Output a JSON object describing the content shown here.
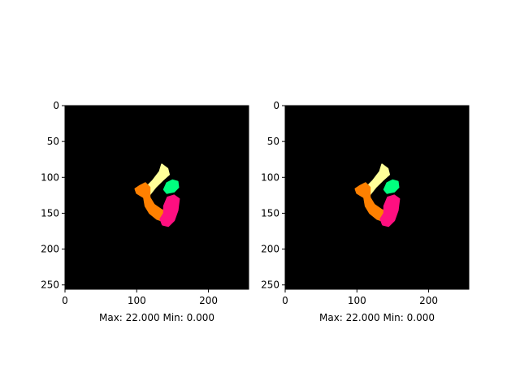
{
  "chart_data": [
    {
      "type": "heatmap",
      "title": "",
      "xlabel": "Max: 22.000 Min: 0.000",
      "ylabel": "",
      "image_size": [
        256,
        256
      ],
      "background_color": "#000000",
      "x_ticks": [
        0,
        100,
        200
      ],
      "y_ticks": [
        0,
        50,
        100,
        150,
        200,
        250
      ],
      "value_range": {
        "max": 22.0,
        "min": 0.0
      },
      "regions": [
        {
          "label_color": "#ffff99",
          "polygon": [
            [
              135,
              82
            ],
            [
              143,
              88
            ],
            [
              145,
              96
            ],
            [
              136,
              104
            ],
            [
              126,
              114
            ],
            [
              118,
              124
            ],
            [
              112,
              130
            ],
            [
              108,
              125
            ],
            [
              112,
              115
            ],
            [
              122,
              105
            ],
            [
              132,
              92
            ]
          ]
        },
        {
          "label_color": "#00ff7f",
          "polygon": [
            [
              142,
              108
            ],
            [
              150,
              104
            ],
            [
              157,
              106
            ],
            [
              158,
              114
            ],
            [
              152,
              120
            ],
            [
              142,
              122
            ],
            [
              138,
              117
            ]
          ]
        },
        {
          "label_color": "#ff8000",
          "polygon": [
            [
              104,
              112
            ],
            [
              112,
              108
            ],
            [
              118,
              114
            ],
            [
              118,
              128
            ],
            [
              124,
              138
            ],
            [
              134,
              145
            ],
            [
              142,
              148
            ],
            [
              146,
              156
            ],
            [
              140,
              162
            ],
            [
              128,
              158
            ],
            [
              118,
              150
            ],
            [
              112,
              140
            ],
            [
              110,
              128
            ],
            [
              100,
              122
            ],
            [
              98,
              116
            ]
          ]
        },
        {
          "label_color": "#ff0f80",
          "polygon": [
            [
              143,
              128
            ],
            [
              152,
              125
            ],
            [
              159,
              130
            ],
            [
              157,
              146
            ],
            [
              152,
              160
            ],
            [
              144,
              168
            ],
            [
              136,
              166
            ],
            [
              133,
              158
            ],
            [
              138,
              150
            ],
            [
              138,
              140
            ]
          ]
        }
      ]
    },
    {
      "type": "heatmap",
      "title": "",
      "xlabel": "Max: 22.000 Min: 0.000",
      "ylabel": "",
      "image_size": [
        256,
        256
      ],
      "background_color": "#000000",
      "x_ticks": [
        0,
        100,
        200
      ],
      "y_ticks": [
        0,
        50,
        100,
        150,
        200,
        250
      ],
      "value_range": {
        "max": 22.0,
        "min": 0.0
      },
      "regions": [
        {
          "label_color": "#ffff99",
          "polygon": [
            [
              135,
              82
            ],
            [
              143,
              88
            ],
            [
              145,
              96
            ],
            [
              136,
              104
            ],
            [
              126,
              114
            ],
            [
              118,
              124
            ],
            [
              112,
              130
            ],
            [
              108,
              125
            ],
            [
              112,
              115
            ],
            [
              122,
              105
            ],
            [
              132,
              92
            ]
          ]
        },
        {
          "label_color": "#00ff7f",
          "polygon": [
            [
              142,
              108
            ],
            [
              150,
              104
            ],
            [
              157,
              106
            ],
            [
              158,
              114
            ],
            [
              152,
              120
            ],
            [
              142,
              122
            ],
            [
              138,
              117
            ]
          ]
        },
        {
          "label_color": "#ff8000",
          "polygon": [
            [
              104,
              112
            ],
            [
              112,
              108
            ],
            [
              118,
              114
            ],
            [
              118,
              128
            ],
            [
              124,
              138
            ],
            [
              134,
              145
            ],
            [
              142,
              148
            ],
            [
              146,
              156
            ],
            [
              140,
              162
            ],
            [
              128,
              158
            ],
            [
              118,
              150
            ],
            [
              112,
              140
            ],
            [
              110,
              128
            ],
            [
              100,
              122
            ],
            [
              98,
              116
            ]
          ]
        },
        {
          "label_color": "#ff0f80",
          "polygon": [
            [
              143,
              128
            ],
            [
              152,
              125
            ],
            [
              159,
              130
            ],
            [
              157,
              146
            ],
            [
              152,
              160
            ],
            [
              144,
              168
            ],
            [
              136,
              166
            ],
            [
              133,
              158
            ],
            [
              138,
              150
            ],
            [
              138,
              140
            ]
          ]
        }
      ]
    }
  ]
}
